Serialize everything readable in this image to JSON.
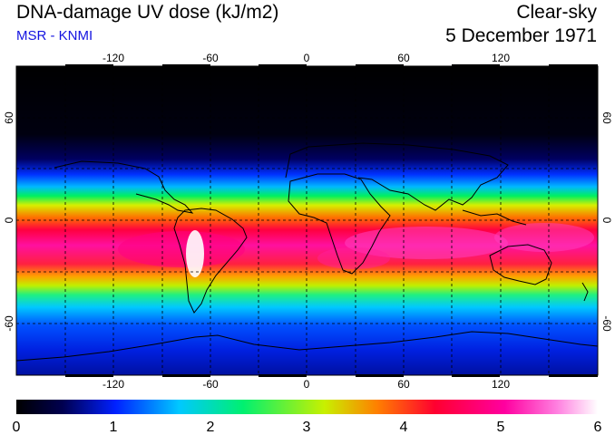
{
  "header": {
    "title": "DNA-damage UV dose (kJ/m2)",
    "source": "MSR - KNMI",
    "sky_condition": "Clear-sky",
    "date": "5 December 1971"
  },
  "map": {
    "projection": "equirectangular",
    "lon_range": [
      -180,
      180
    ],
    "lat_range": [
      -90,
      90
    ],
    "lon_ticks": [
      -120,
      -60,
      0,
      60,
      120
    ],
    "lat_ticks": [
      60,
      0,
      -60
    ],
    "lon_tick_labels": [
      "-120",
      "-60",
      "0",
      "60",
      "120"
    ],
    "lat_tick_labels": [
      "60",
      "0",
      "-60"
    ],
    "grid": "dashed every 30 degrees"
  },
  "colorbar": {
    "min": 0,
    "max": 6,
    "tick_labels": [
      "0",
      "1",
      "2",
      "3",
      "4",
      "5",
      "6"
    ],
    "stops": [
      "#000000",
      "#000080",
      "#0030ff",
      "#00c8ff",
      "#00f060",
      "#c8f000",
      "#ff8000",
      "#ff0040",
      "#ff00b0",
      "#ffffff"
    ]
  },
  "colors": {
    "subtitle": "#1414e0",
    "coastline": "#000000"
  }
}
